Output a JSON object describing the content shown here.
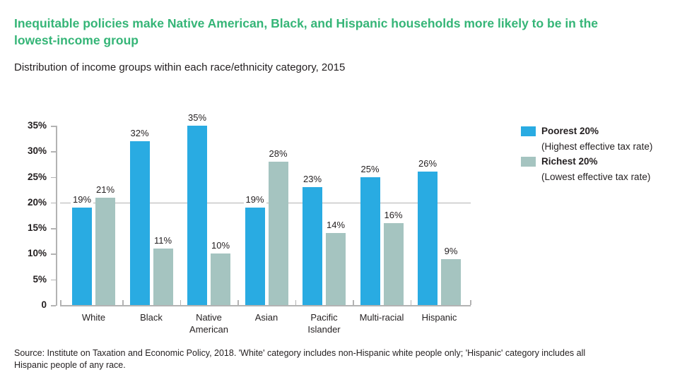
{
  "header": {
    "title": "Inequitable policies make Native American, Black, and Hispanic households more likely to be in the lowest-income group",
    "subtitle": "Distribution of income groups within each race/ethnicity category, 2015"
  },
  "colors": {
    "title_green": "#35b577",
    "poorest_blue": "#29abe2",
    "richest_gray": "#a5c4c0",
    "axis_gray": "#b3b3b3",
    "text_dark": "#231f20"
  },
  "chart_data": {
    "type": "bar",
    "title": "Inequitable policies make Native American, Black, and Hispanic households more likely to be in the lowest-income group",
    "subtitle": "Distribution of income groups within each race/ethnicity category, 2015",
    "categories": [
      "White",
      "Black",
      "Native American",
      "Asian",
      "Pacific Islander",
      "Multi-racial",
      "Hispanic"
    ],
    "series": [
      {
        "name": "Poorest 20%",
        "sublabel": "(Highest effective tax rate)",
        "color": "#29abe2",
        "values": [
          19,
          32,
          35,
          19,
          23,
          25,
          26
        ]
      },
      {
        "name": "Richest 20%",
        "sublabel": "(Lowest effective tax rate)",
        "color": "#a5c4c0",
        "values": [
          21,
          11,
          10,
          28,
          14,
          16,
          9
        ]
      }
    ],
    "y_ticks": [
      "35%",
      "30%",
      "25%",
      "20%",
      "15%",
      "10%",
      "5%",
      "0"
    ],
    "y_tick_values": [
      35,
      30,
      25,
      20,
      15,
      10,
      5,
      0
    ],
    "ylim": [
      0,
      35
    ],
    "reference_line": 20,
    "value_suffix": "%",
    "grid": "single horizontal reference line at 20%",
    "legend_position": "right"
  },
  "legend": {
    "items": [
      {
        "label": "Poorest 20%",
        "sublabel": "(Highest effective tax rate)",
        "color": "#29abe2"
      },
      {
        "label": "Richest 20%",
        "sublabel": "(Lowest effective tax rate)",
        "color": "#a5c4c0"
      }
    ]
  },
  "footer": {
    "source": "Source: Institute on Taxation and Economic Policy, 2018. 'White' category includes non-Hispanic white people only; 'Hispanic' category includes all Hispanic people of any race."
  }
}
